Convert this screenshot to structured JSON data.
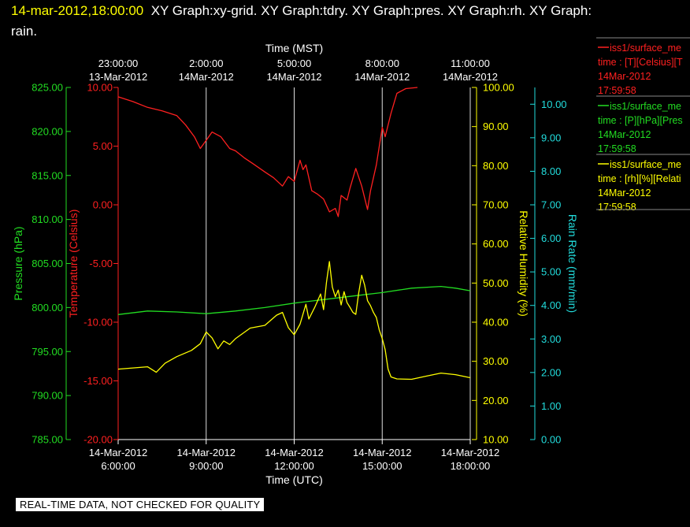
{
  "header": {
    "timestamp": "14-mar-2012,18:00:00",
    "line1": "XY Graph:xy-grid.  XY Graph:tdry.  XY Graph:pres.  XY Graph:rh.  XY Graph:",
    "line2": "rain.",
    "timestamp_color": "#ffff00"
  },
  "quality_banner": "REAL-TIME DATA, NOT CHECKED FOR QUALITY",
  "legend": [
    {
      "name": "iss1/surface_me",
      "color": "#ff2020",
      "units": "time : [T][Celsius][T",
      "date": "14Mar-2012",
      "time": "17:59:58"
    },
    {
      "name": "iss1/surface_me",
      "color": "#22dd22",
      "units": "time : [P][hPa][Pres",
      "date": "14Mar-2012",
      "time": "17:59:58"
    },
    {
      "name": "iss1/surface_me",
      "color": "#ffff00",
      "units": "time : [rh][%][Relati",
      "date": "14Mar-2012",
      "time": "17:59:58"
    }
  ],
  "chart_data": {
    "type": "line",
    "grid": true,
    "x_bottom": {
      "label": "Time (UTC)",
      "range_hours": [
        6,
        18
      ],
      "ticks": [
        {
          "hour": 6,
          "date": "14-Mar-2012",
          "time": "6:00:00"
        },
        {
          "hour": 9,
          "date": "14-Mar-2012",
          "time": "9:00:00"
        },
        {
          "hour": 12,
          "date": "14-Mar-2012",
          "time": "12:00:00"
        },
        {
          "hour": 15,
          "date": "14-Mar-2012",
          "time": "15:00:00"
        },
        {
          "hour": 18,
          "date": "14-Mar-2012",
          "time": "18:00:00"
        }
      ]
    },
    "x_top": {
      "label": "Time (MST)",
      "ticks": [
        {
          "hour": 6,
          "time": "23:00:00",
          "date": "13-Mar-2012"
        },
        {
          "hour": 9,
          "time": "2:00:00",
          "date": "14Mar-2012"
        },
        {
          "hour": 12,
          "time": "5:00:00",
          "date": "14Mar-2012"
        },
        {
          "hour": 15,
          "time": "8:00:00",
          "date": "14Mar-2012"
        },
        {
          "hour": 18,
          "time": "11:00:00",
          "date": "14Mar-2012"
        }
      ]
    },
    "axes": {
      "pressure": {
        "label": "Pressure (hPa)",
        "color": "#22dd22",
        "range": [
          785,
          825
        ],
        "ticks": [
          "785.00",
          "790.00",
          "795.00",
          "800.00",
          "805.00",
          "810.00",
          "815.00",
          "820.00",
          "825.00"
        ]
      },
      "temperature": {
        "label": "Temperature (Celsius)",
        "color": "#ff2020",
        "range": [
          -20,
          10
        ],
        "ticks": [
          "-20.00",
          "-15.00",
          "-10.00",
          "-5.00",
          "0.00",
          "5.00",
          "10.00"
        ]
      },
      "humidity": {
        "label": "Relative Humidity (%)",
        "color": "#ffff00",
        "range": [
          10,
          100
        ],
        "ticks": [
          "10.00",
          "20.00",
          "30.00",
          "40.00",
          "50.00",
          "60.00",
          "70.00",
          "80.00",
          "90.00",
          "100.00"
        ]
      },
      "rain": {
        "label": "Rain Rate (mm/min)",
        "color": "#22dddd",
        "range": [
          0,
          10.5
        ],
        "ticks": [
          "0.00",
          "1.00",
          "2.00",
          "3.00",
          "4.00",
          "5.00",
          "6.00",
          "7.00",
          "8.00",
          "9.00",
          "10.00"
        ]
      }
    },
    "series": [
      {
        "name": "tdry",
        "axis": "temperature",
        "color": "#ff2020",
        "points": [
          [
            6,
            9.2
          ],
          [
            6.5,
            8.8
          ],
          [
            7,
            8.3
          ],
          [
            7.5,
            8.0
          ],
          [
            8,
            7.6
          ],
          [
            8.3,
            6.8
          ],
          [
            8.6,
            5.8
          ],
          [
            8.8,
            4.8
          ],
          [
            9,
            5.5
          ],
          [
            9.2,
            6.2
          ],
          [
            9.5,
            5.8
          ],
          [
            9.8,
            4.8
          ],
          [
            10,
            4.6
          ],
          [
            10.3,
            4.0
          ],
          [
            10.6,
            3.5
          ],
          [
            11,
            2.8
          ],
          [
            11.3,
            2.3
          ],
          [
            11.6,
            1.6
          ],
          [
            11.8,
            2.4
          ],
          [
            12,
            2.0
          ],
          [
            12.2,
            3.8
          ],
          [
            12.3,
            3.0
          ],
          [
            12.4,
            3.4
          ],
          [
            12.6,
            1.2
          ],
          [
            12.8,
            0.9
          ],
          [
            13,
            0.5
          ],
          [
            13.2,
            -0.6
          ],
          [
            13.4,
            -0.3
          ],
          [
            13.5,
            -1.0
          ],
          [
            13.6,
            0.8
          ],
          [
            13.8,
            0.4
          ],
          [
            13.9,
            1.4
          ],
          [
            14.1,
            3.1
          ],
          [
            14.3,
            1.6
          ],
          [
            14.5,
            -0.4
          ],
          [
            14.6,
            1.2
          ],
          [
            14.8,
            3.4
          ],
          [
            15,
            6.6
          ],
          [
            15.1,
            5.8
          ],
          [
            15.3,
            7.8
          ],
          [
            15.5,
            9.5
          ],
          [
            15.8,
            9.9
          ],
          [
            16.2,
            10.0
          ]
        ]
      },
      {
        "name": "pres",
        "axis": "pressure",
        "color": "#22dd22",
        "points": [
          [
            6,
            799.2
          ],
          [
            7,
            799.6
          ],
          [
            8,
            799.5
          ],
          [
            9,
            799.3
          ],
          [
            10,
            799.6
          ],
          [
            11,
            800.0
          ],
          [
            12,
            800.5
          ],
          [
            13,
            800.9
          ],
          [
            14,
            801.3
          ],
          [
            15,
            801.7
          ],
          [
            16,
            802.2
          ],
          [
            17,
            802.4
          ],
          [
            17.5,
            802.2
          ],
          [
            18,
            801.9
          ]
        ]
      },
      {
        "name": "rh",
        "axis": "humidity",
        "color": "#ffff00",
        "points": [
          [
            6,
            28.0
          ],
          [
            6.5,
            28.3
          ],
          [
            7,
            28.6
          ],
          [
            7.3,
            27.2
          ],
          [
            7.6,
            29.5
          ],
          [
            8,
            31.2
          ],
          [
            8.5,
            32.8
          ],
          [
            8.8,
            34.5
          ],
          [
            9,
            37.5
          ],
          [
            9.2,
            36.0
          ],
          [
            9.4,
            33.2
          ],
          [
            9.6,
            35.2
          ],
          [
            9.8,
            34.3
          ],
          [
            10,
            35.8
          ],
          [
            10.5,
            38.5
          ],
          [
            11,
            39.2
          ],
          [
            11.4,
            41.8
          ],
          [
            11.6,
            42.5
          ],
          [
            11.8,
            38.6
          ],
          [
            12,
            36.8
          ],
          [
            12.2,
            39.5
          ],
          [
            12.4,
            44.6
          ],
          [
            12.5,
            40.8
          ],
          [
            12.7,
            43.8
          ],
          [
            12.9,
            47.2
          ],
          [
            13,
            43.2
          ],
          [
            13.1,
            50.2
          ],
          [
            13.2,
            55.5
          ],
          [
            13.3,
            49.0
          ],
          [
            13.4,
            46.5
          ],
          [
            13.5,
            48.2
          ],
          [
            13.6,
            44.4
          ],
          [
            13.7,
            47.8
          ],
          [
            13.8,
            45.0
          ],
          [
            13.9,
            43.8
          ],
          [
            14,
            42.5
          ],
          [
            14.1,
            42.0
          ],
          [
            14.2,
            47.5
          ],
          [
            14.3,
            52.0
          ],
          [
            14.4,
            49.5
          ],
          [
            14.5,
            45.5
          ],
          [
            14.6,
            44.2
          ],
          [
            14.7,
            42.5
          ],
          [
            14.8,
            41.2
          ],
          [
            14.9,
            38.0
          ],
          [
            15,
            35.8
          ],
          [
            15.1,
            33.0
          ],
          [
            15.2,
            28.0
          ],
          [
            15.3,
            26.0
          ],
          [
            15.5,
            25.5
          ],
          [
            16,
            25.4
          ],
          [
            16.5,
            26.2
          ],
          [
            17,
            27.0
          ],
          [
            17.5,
            26.6
          ],
          [
            18,
            25.8
          ]
        ]
      }
    ]
  }
}
